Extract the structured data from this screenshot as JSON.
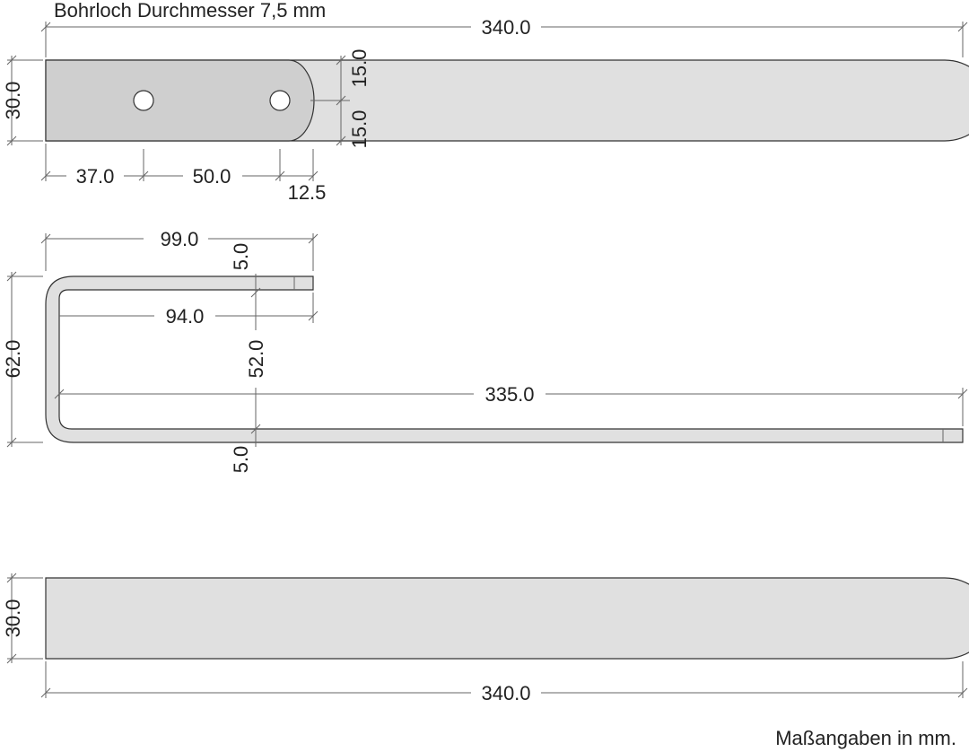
{
  "notes": {
    "drill_hole": "Bohrloch Durchmesser 7,5 mm",
    "units": "Maßangaben in mm."
  },
  "top_view": {
    "length": "340.0",
    "width": "30.0",
    "half_upper": "15.0",
    "half_lower": "15.0",
    "hole_offset": "37.0",
    "hole_spacing": "50.0",
    "end_offset": "12.5"
  },
  "side_view": {
    "top_length": "99.0",
    "top_thickness": "5.0",
    "inner_length": "94.0",
    "height": "62.0",
    "inner_height": "52.0",
    "bottom_length": "335.0",
    "bottom_thickness": "5.0"
  },
  "bottom_view": {
    "width": "30.0",
    "length": "340.0"
  },
  "colors": {
    "part_fill": "#e0e0e0",
    "outline": "#333333",
    "dimension_line": "#666666"
  }
}
